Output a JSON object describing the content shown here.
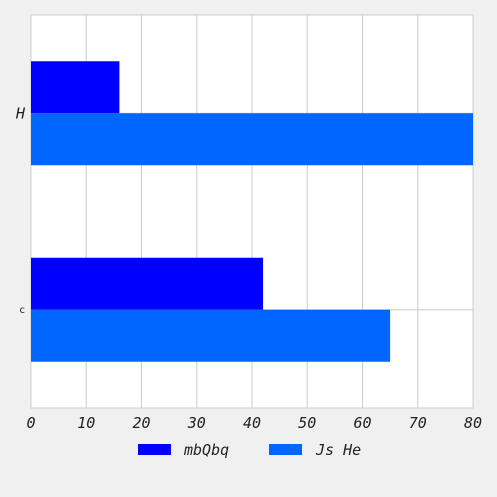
{
  "chart_data": {
    "type": "bar",
    "orientation": "horizontal",
    "categories": [
      "H",
      "c"
    ],
    "series": [
      {
        "name": "mbQbq",
        "values": [
          16,
          42
        ],
        "color": "#0000ff"
      },
      {
        "name": "Js He",
        "values": [
          80,
          65
        ],
        "color": "#0066ff"
      }
    ],
    "xlim": [
      0,
      80
    ],
    "xticks": [
      "0",
      "10",
      "20",
      "30",
      "40",
      "50",
      "60",
      "70",
      "80"
    ],
    "grid": true,
    "legend_position": "bottom"
  }
}
